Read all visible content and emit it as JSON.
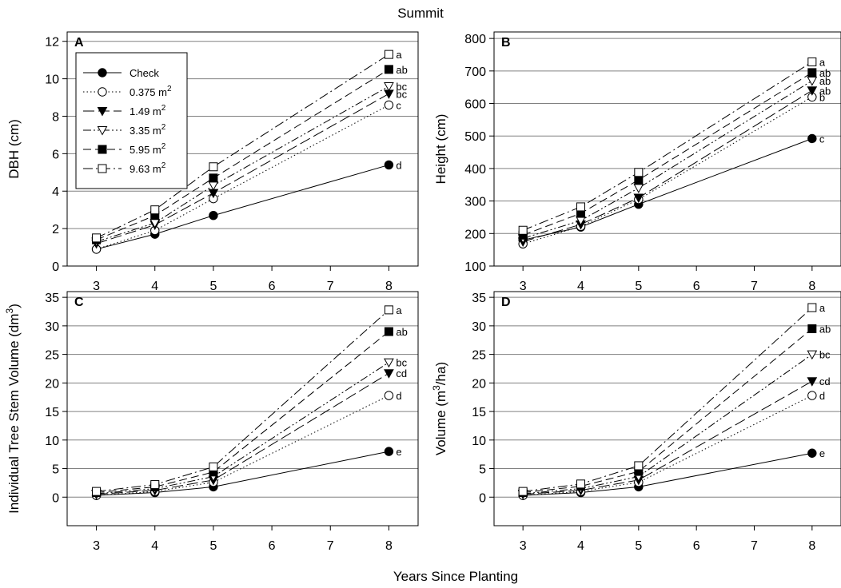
{
  "figure": {
    "title": "Summit",
    "xlabel": "Years Since Planting"
  },
  "legend": {
    "placement": "inside top-left of panel A",
    "entries": [
      {
        "label": "Check",
        "sup": "",
        "marker": "filled-circle",
        "dash": "solid"
      },
      {
        "label": "0.375 m",
        "sup": "2",
        "marker": "open-circle",
        "dash": "dotted"
      },
      {
        "label": "1.49 m",
        "sup": "2",
        "marker": "filled-down-triangle",
        "dash": "long-dash"
      },
      {
        "label": "3.35 m",
        "sup": "2",
        "marker": "open-down-triangle",
        "dash": "dash-dot-dot"
      },
      {
        "label": "5.95 m",
        "sup": "2",
        "marker": "filled-square",
        "dash": "dash"
      },
      {
        "label": "9.63 m",
        "sup": "2",
        "marker": "open-square",
        "dash": "dash-dot"
      }
    ]
  },
  "chart_data": [
    {
      "panel": "A",
      "type": "line",
      "ylabel": "DBH (cm)",
      "ylabel_sup": "",
      "ylabel_tail": "",
      "x": [
        3,
        4,
        5,
        8
      ],
      "xlim": [
        2.5,
        8.5
      ],
      "xticks": [
        3,
        4,
        5,
        6,
        7,
        8
      ],
      "ylim": [
        0,
        12.5
      ],
      "yticks": [
        0,
        2,
        4,
        6,
        8,
        10,
        12
      ],
      "grid": true,
      "series": [
        {
          "name": "Check",
          "values": [
            0.9,
            1.7,
            2.7,
            5.4
          ],
          "sig": "d"
        },
        {
          "name": "0.375 m2",
          "values": [
            0.9,
            1.9,
            3.6,
            8.6
          ],
          "sig": "c"
        },
        {
          "name": "1.49 m2",
          "values": [
            1.2,
            2.2,
            3.9,
            9.2
          ],
          "sig": "bc"
        },
        {
          "name": "3.35 m2",
          "values": [
            1.3,
            2.3,
            4.3,
            9.6
          ],
          "sig": "bc"
        },
        {
          "name": "5.95 m2",
          "values": [
            1.4,
            2.7,
            4.7,
            10.5
          ],
          "sig": "ab"
        },
        {
          "name": "9.63 m2",
          "values": [
            1.5,
            3.0,
            5.3,
            11.3
          ],
          "sig": "a"
        }
      ]
    },
    {
      "panel": "B",
      "type": "line",
      "ylabel": "Height (cm)",
      "ylabel_sup": "",
      "ylabel_tail": "",
      "x": [
        3,
        4,
        5,
        8
      ],
      "xlim": [
        2.5,
        8.5
      ],
      "xticks": [
        3,
        4,
        5,
        6,
        7,
        8
      ],
      "ylim": [
        100,
        820
      ],
      "yticks": [
        100,
        200,
        300,
        400,
        500,
        600,
        700,
        800
      ],
      "grid": true,
      "series": [
        {
          "name": "Check",
          "values": [
            180,
            220,
            290,
            492
          ],
          "sig": "c"
        },
        {
          "name": "0.375 m2",
          "values": [
            168,
            222,
            305,
            620
          ],
          "sig": "b"
        },
        {
          "name": "1.49 m2",
          "values": [
            175,
            228,
            310,
            640
          ],
          "sig": "ab"
        },
        {
          "name": "3.35 m2",
          "values": [
            185,
            240,
            340,
            670
          ],
          "sig": "ab"
        },
        {
          "name": "5.95 m2",
          "values": [
            195,
            262,
            365,
            695
          ],
          "sig": "ab"
        },
        {
          "name": "9.63 m2",
          "values": [
            210,
            282,
            388,
            728
          ],
          "sig": "a"
        }
      ]
    },
    {
      "panel": "C",
      "type": "line",
      "ylabel": "Individual Tree Stem Volume (dm",
      "ylabel_sup": "3",
      "ylabel_tail": ")",
      "x": [
        3,
        4,
        5,
        8
      ],
      "xlim": [
        2.5,
        8.5
      ],
      "xticks": [
        3,
        4,
        5,
        6,
        7,
        8
      ],
      "ylim": [
        -5,
        36
      ],
      "yticks": [
        0,
        5,
        10,
        15,
        20,
        25,
        30,
        35
      ],
      "grid": true,
      "series": [
        {
          "name": "Check",
          "values": [
            0.3,
            0.8,
            1.8,
            8.0
          ],
          "sig": "e"
        },
        {
          "name": "0.375 m2",
          "values": [
            0.3,
            1.0,
            2.6,
            17.8
          ],
          "sig": "d"
        },
        {
          "name": "1.49 m2",
          "values": [
            0.5,
            1.2,
            3.0,
            21.7
          ],
          "sig": "cd"
        },
        {
          "name": "3.35 m2",
          "values": [
            0.6,
            1.5,
            3.6,
            23.6
          ],
          "sig": "bc"
        },
        {
          "name": "5.95 m2",
          "values": [
            0.8,
            1.8,
            4.4,
            29.0
          ],
          "sig": "ab"
        },
        {
          "name": "9.63 m2",
          "values": [
            1.0,
            2.2,
            5.3,
            32.8
          ],
          "sig": "a"
        }
      ]
    },
    {
      "panel": "D",
      "type": "line",
      "ylabel": "Volume (m",
      "ylabel_sup": "3",
      "ylabel_tail": "/ha)",
      "x": [
        3,
        4,
        5,
        8
      ],
      "xlim": [
        2.5,
        8.5
      ],
      "xticks": [
        3,
        4,
        5,
        6,
        7,
        8
      ],
      "ylim": [
        -5,
        36
      ],
      "yticks": [
        0,
        5,
        10,
        15,
        20,
        25,
        30,
        35
      ],
      "grid": true,
      "series": [
        {
          "name": "Check",
          "values": [
            0.3,
            0.8,
            1.8,
            7.7
          ],
          "sig": "e"
        },
        {
          "name": "0.375 m2",
          "values": [
            0.3,
            1.0,
            2.6,
            17.8
          ],
          "sig": "d"
        },
        {
          "name": "1.49 m2",
          "values": [
            0.5,
            1.2,
            3.0,
            20.3
          ],
          "sig": "cd"
        },
        {
          "name": "3.35 m2",
          "values": [
            0.6,
            1.5,
            3.6,
            25.0
          ],
          "sig": "bc"
        },
        {
          "name": "5.95 m2",
          "values": [
            0.8,
            1.9,
            4.5,
            29.5
          ],
          "sig": "ab"
        },
        {
          "name": "9.63 m2",
          "values": [
            1.0,
            2.3,
            5.5,
            33.2
          ],
          "sig": "a"
        }
      ]
    }
  ]
}
